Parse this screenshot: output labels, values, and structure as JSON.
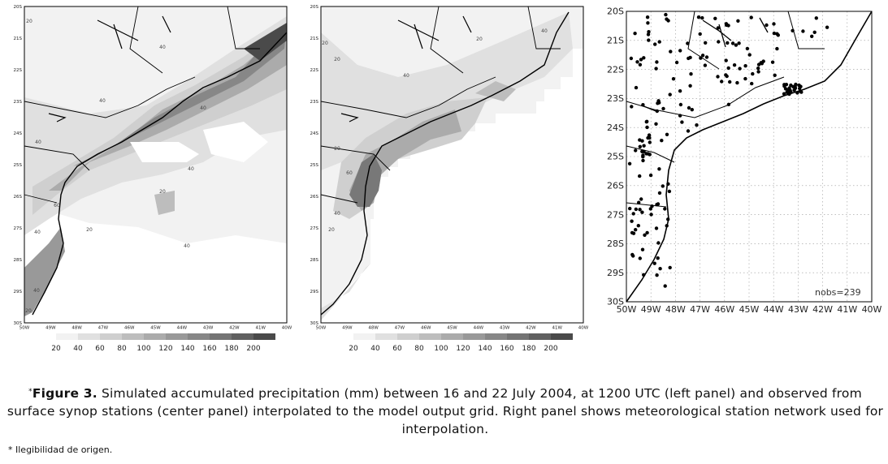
{
  "left_panel": {
    "lat_labels": [
      "20S",
      "21S",
      "22S",
      "23S",
      "24S",
      "25S",
      "26S",
      "27S",
      "28S",
      "29S",
      "30S"
    ],
    "lon_labels": [
      "50W",
      "49W",
      "48W",
      "47W",
      "46W",
      "45W",
      "44W",
      "43W",
      "42W",
      "41W",
      "40W"
    ],
    "contour_labels": [
      "20",
      "40",
      "40",
      "40",
      "40",
      "40",
      "20",
      "20",
      "40",
      "40",
      "60",
      "40",
      "20"
    ],
    "colorbar": {
      "ticks": [
        "20",
        "40",
        "60",
        "80",
        "100",
        "120",
        "140",
        "160",
        "180",
        "200"
      ],
      "shades": [
        "#ffffff",
        "#f2f2f2",
        "#e0e0e0",
        "#cfcfcf",
        "#bdbdbd",
        "#ababab",
        "#999999",
        "#878787",
        "#747474",
        "#606060",
        "#4a4a4a"
      ]
    }
  },
  "center_panel": {
    "lat_labels": [
      "20S",
      "21S",
      "22S",
      "23S",
      "24S",
      "25S",
      "26S",
      "27S",
      "28S",
      "29S",
      "30S"
    ],
    "lon_labels": [
      "50W",
      "49W",
      "48W",
      "47W",
      "46W",
      "45W",
      "44W",
      "43W",
      "42W",
      "41W",
      "40W"
    ],
    "contour_labels": [
      "20",
      "20",
      "40",
      "20",
      "40",
      "20",
      "60",
      "40",
      "20"
    ],
    "colorbar": {
      "ticks": [
        "20",
        "40",
        "60",
        "80",
        "100",
        "120",
        "140",
        "160",
        "180",
        "200"
      ],
      "shades": [
        "#ffffff",
        "#f2f2f2",
        "#e0e0e0",
        "#cfcfcf",
        "#bdbdbd",
        "#ababab",
        "#999999",
        "#878787",
        "#747474",
        "#606060",
        "#4a4a4a"
      ]
    }
  },
  "right_panel": {
    "lat_labels": [
      "20S",
      "21S",
      "22S",
      "23S",
      "24S",
      "25S",
      "26S",
      "27S",
      "28S",
      "29S",
      "30S"
    ],
    "lon_labels": [
      "50W",
      "49W",
      "48W",
      "47W",
      "46W",
      "45W",
      "44W",
      "43W",
      "42W",
      "41W",
      "40W"
    ],
    "nobs_label": "nobs=239"
  },
  "caption": {
    "marker": "*",
    "label": "Figure 3.",
    "text": " Simulated accumulated precipitation (mm) between 16 and 22 July 2004, at 1200 UTC (left panel) and observed from surface synop stations (center panel) interpolated to the model output grid. Right panel shows meteorological station network used for interpolation."
  },
  "footnote": "* Ilegibilidad de origen."
}
